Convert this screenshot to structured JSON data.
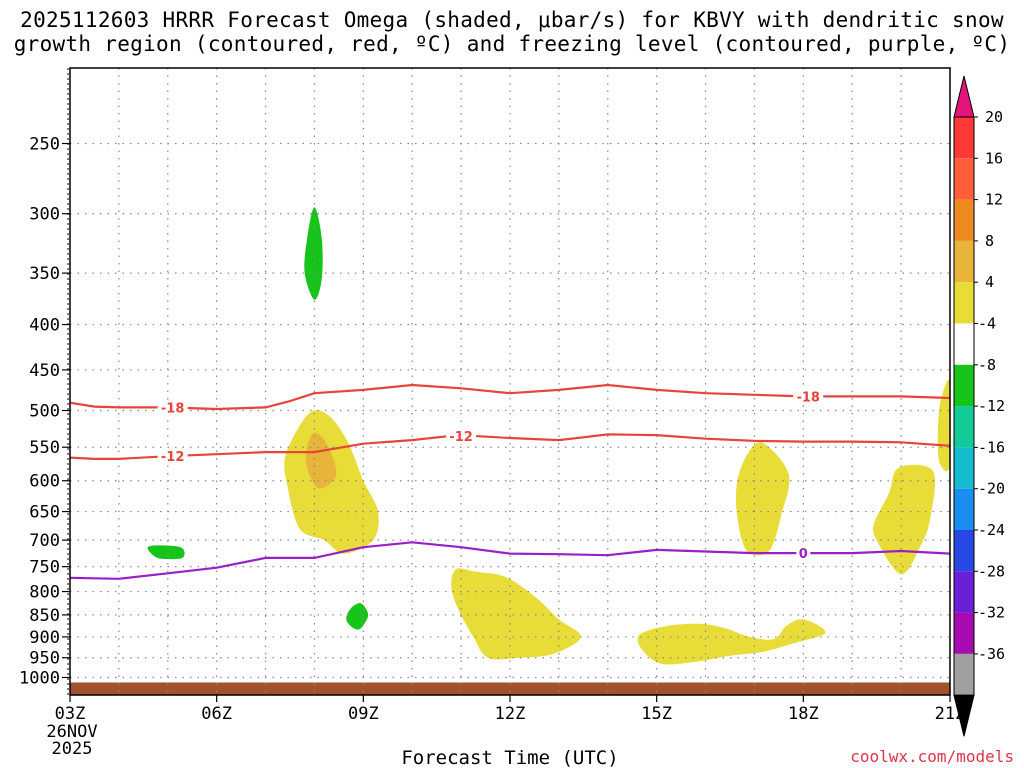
{
  "title": {
    "line1": "2025112603 HRRR Forecast Omega (shaded, μbar/s) for KBVY with dendritic snow",
    "line2": "growth region (contoured, red, ºC) and freezing level (contoured, purple, ºC)"
  },
  "credit": "coolwx.com/models",
  "colors": {
    "dendritic": "#e8443a",
    "freezing": "#9a1fc9",
    "terrain": "#a0522d",
    "grid": "#888888"
  },
  "chart_data": {
    "type": "heatmap",
    "xlabel": "Forecast Time (UTC)",
    "ylabel": "",
    "x_ticks": [
      "03Z",
      "06Z",
      "09Z",
      "12Z",
      "15Z",
      "18Z",
      "21Z"
    ],
    "x_first_sublabels": [
      "26NOV",
      "2025"
    ],
    "xlim_hours": [
      3,
      21
    ],
    "y_ticks": [
      250,
      300,
      350,
      400,
      450,
      500,
      550,
      600,
      650,
      700,
      750,
      800,
      850,
      900,
      950,
      1000
    ],
    "ylim_hPa": [
      1030,
      200
    ],
    "y_scale": "log",
    "colorbar": {
      "units": "μbar/s",
      "labels": [
        "20",
        "16",
        "12",
        "8",
        "4",
        "-4",
        "-8",
        "-12",
        "-16",
        "-20",
        "-24",
        "-28",
        "-32",
        "-36"
      ],
      "levels": [
        20,
        16,
        12,
        8,
        4,
        -4,
        -8,
        -12,
        -16,
        -20,
        -24,
        -28,
        -32,
        -36
      ],
      "colors": [
        "#ff3838",
        "#ff5e3a",
        "#ee8a20",
        "#e8b43a",
        "#e8dc38",
        "#ffffff",
        "#16c41a",
        "#12ca96",
        "#15bcd0",
        "#1a8ef0",
        "#2848e6",
        "#6a20d6",
        "#a80ab2",
        "#a0a0a0"
      ],
      "top_triangle_color": "#e4147a",
      "bottom_triangle_color": "#000000"
    },
    "shaded_regions": [
      {
        "level": -4,
        "points": [
          [
            4.15,
            780
          ],
          [
            3.85,
            745
          ],
          [
            3.55,
            700
          ],
          [
            3.55,
            650
          ],
          [
            3.8,
            620
          ],
          [
            4.2,
            645
          ],
          [
            4.7,
            665
          ],
          [
            5.3,
            665
          ],
          [
            5.9,
            660
          ],
          [
            5.95,
            700
          ],
          [
            6.1,
            760
          ],
          [
            6.6,
            815
          ],
          [
            6.45,
            860
          ],
          [
            5.9,
            880
          ],
          [
            5.2,
            830
          ],
          [
            4.6,
            790
          ]
        ]
      },
      {
        "level": -4,
        "points": [
          [
            4.0,
            985
          ],
          [
            3.7,
            960
          ],
          [
            3.7,
            880
          ],
          [
            3.95,
            845
          ],
          [
            4.35,
            865
          ],
          [
            4.9,
            885
          ],
          [
            5.5,
            890
          ],
          [
            5.45,
            925
          ],
          [
            5.0,
            945
          ],
          [
            4.4,
            960
          ]
        ]
      },
      {
        "level": -4,
        "points": [
          [
            4.92,
            380
          ],
          [
            4.75,
            355
          ],
          [
            4.9,
            335
          ],
          [
            5.05,
            355
          ]
        ]
      },
      {
        "level": -4,
        "points": [
          [
            6.7,
            575
          ],
          [
            6.65,
            530
          ],
          [
            6.95,
            500
          ],
          [
            7.05,
            540
          ],
          [
            7.0,
            575
          ]
        ]
      },
      {
        "level": -4,
        "points": [
          [
            7.95,
            425
          ],
          [
            7.6,
            410
          ],
          [
            7.5,
            350
          ],
          [
            7.55,
            290
          ],
          [
            7.8,
            258
          ],
          [
            8.1,
            265
          ],
          [
            8.3,
            310
          ],
          [
            8.3,
            380
          ],
          [
            8.2,
            415
          ]
        ]
      },
      {
        "level": -4,
        "points": [
          [
            11.9,
            450
          ],
          [
            11.3,
            405
          ],
          [
            10.85,
            360
          ],
          [
            10.9,
            340
          ],
          [
            11.2,
            335
          ],
          [
            11.6,
            300
          ],
          [
            12.1,
            290
          ],
          [
            12.3,
            340
          ],
          [
            12.45,
            380
          ],
          [
            12.4,
            425
          ]
        ]
      },
      {
        "level": -4,
        "points": [
          [
            17.8,
            330
          ],
          [
            17.6,
            300
          ],
          [
            17.75,
            280
          ],
          [
            18.0,
            265
          ],
          [
            18.35,
            290
          ],
          [
            18.2,
            315
          ]
        ]
      },
      {
        "level": -4,
        "points": [
          [
            7.55,
            710
          ],
          [
            7.8,
            695
          ],
          [
            8.1,
            710
          ],
          [
            7.8,
            725
          ]
        ]
      },
      {
        "level": -4,
        "points": [
          [
            7.6,
            990
          ],
          [
            7.3,
            970
          ],
          [
            7.35,
            930
          ],
          [
            7.8,
            900
          ],
          [
            8.2,
            855
          ],
          [
            8.6,
            820
          ],
          [
            9.0,
            800
          ],
          [
            9.4,
            815
          ],
          [
            9.3,
            875
          ],
          [
            9.0,
            920
          ],
          [
            8.6,
            950
          ],
          [
            8.2,
            985
          ]
        ]
      },
      {
        "level": -4,
        "points": [
          [
            19.9,
            940
          ],
          [
            20.05,
            925
          ],
          [
            20.2,
            940
          ],
          [
            20.05,
            955
          ]
        ]
      },
      {
        "level": 4,
        "points": [
          [
            8.6,
            725
          ],
          [
            8.2,
            700
          ],
          [
            7.7,
            680
          ],
          [
            7.45,
            610
          ],
          [
            7.4,
            565
          ],
          [
            7.7,
            520
          ],
          [
            8.0,
            500
          ],
          [
            8.35,
            510
          ],
          [
            8.7,
            545
          ],
          [
            9.0,
            600
          ],
          [
            9.3,
            650
          ],
          [
            9.2,
            700
          ]
        ]
      },
      {
        "level": 4,
        "points": [
          [
            11.55,
            950
          ],
          [
            11.25,
            900
          ],
          [
            10.95,
            840
          ],
          [
            10.8,
            790
          ],
          [
            10.9,
            755
          ],
          [
            11.3,
            760
          ],
          [
            11.9,
            770
          ],
          [
            12.5,
            810
          ],
          [
            13.0,
            860
          ],
          [
            13.45,
            900
          ],
          [
            12.9,
            940
          ],
          [
            12.2,
            950
          ]
        ]
      },
      {
        "level": 4,
        "points": [
          [
            15.1,
            965
          ],
          [
            14.7,
            930
          ],
          [
            14.65,
            895
          ],
          [
            15.2,
            875
          ],
          [
            15.9,
            870
          ],
          [
            16.4,
            880
          ],
          [
            16.9,
            900
          ],
          [
            17.4,
            905
          ],
          [
            17.65,
            875
          ],
          [
            18.0,
            860
          ],
          [
            18.45,
            890
          ],
          [
            17.8,
            915
          ],
          [
            17.2,
            935
          ],
          [
            16.5,
            945
          ],
          [
            15.8,
            960
          ]
        ]
      },
      {
        "level": 4,
        "points": [
          [
            16.85,
            720
          ],
          [
            16.65,
            660
          ],
          [
            16.65,
            600
          ],
          [
            16.9,
            555
          ],
          [
            17.2,
            545
          ],
          [
            17.7,
            590
          ],
          [
            17.55,
            655
          ],
          [
            17.3,
            720
          ]
        ]
      },
      {
        "level": 4,
        "points": [
          [
            20.0,
            765
          ],
          [
            19.5,
            700
          ],
          [
            19.45,
            670
          ],
          [
            19.75,
            620
          ],
          [
            19.95,
            580
          ],
          [
            20.65,
            585
          ],
          [
            20.6,
            660
          ],
          [
            20.4,
            710
          ]
        ]
      },
      {
        "level": 4,
        "points": [
          [
            20.8,
            575
          ],
          [
            20.75,
            540
          ],
          [
            20.8,
            490
          ],
          [
            21.0,
            465
          ],
          [
            21.0,
            575
          ]
        ]
      },
      {
        "level": 8,
        "points": [
          [
            8.1,
            612
          ],
          [
            7.85,
            580
          ],
          [
            7.85,
            550
          ],
          [
            8.0,
            530
          ],
          [
            8.25,
            545
          ],
          [
            8.45,
            590
          ]
        ]
      },
      {
        "level": -8,
        "points": [
          [
            4.6,
            712
          ],
          [
            5.0,
            710
          ],
          [
            5.3,
            715
          ],
          [
            5.3,
            733
          ],
          [
            4.9,
            735
          ],
          [
            4.7,
            728
          ]
        ]
      },
      {
        "level": -8,
        "points": [
          [
            8.0,
            375
          ],
          [
            7.8,
            350
          ],
          [
            7.85,
            320
          ],
          [
            8.0,
            295
          ],
          [
            8.15,
            320
          ],
          [
            8.15,
            355
          ]
        ]
      },
      {
        "level": -8,
        "points": [
          [
            8.8,
            880
          ],
          [
            8.65,
            860
          ],
          [
            8.75,
            835
          ],
          [
            8.95,
            825
          ],
          [
            9.1,
            850
          ],
          [
            8.95,
            880
          ]
        ]
      }
    ],
    "series": [
      {
        "name": "-18",
        "label_at_hours": [
          5.1,
          18.1
        ],
        "values": [
          [
            3,
            490
          ],
          [
            3.5,
            495
          ],
          [
            4,
            496
          ],
          [
            5,
            496
          ],
          [
            6,
            498
          ],
          [
            7,
            496
          ],
          [
            7.5,
            488
          ],
          [
            8,
            478
          ],
          [
            9,
            474
          ],
          [
            10,
            468
          ],
          [
            11,
            472
          ],
          [
            12,
            478
          ],
          [
            13,
            474
          ],
          [
            14,
            468
          ],
          [
            15,
            474
          ],
          [
            16,
            478
          ],
          [
            17,
            480
          ],
          [
            18,
            482
          ],
          [
            19,
            482
          ],
          [
            20,
            482
          ],
          [
            21,
            484
          ]
        ]
      },
      {
        "name": "-12",
        "label_at_hours": [
          5.1,
          11.0
        ],
        "values": [
          [
            3,
            565
          ],
          [
            3.5,
            567
          ],
          [
            4,
            567
          ],
          [
            5,
            563
          ],
          [
            6,
            560
          ],
          [
            7,
            557
          ],
          [
            8,
            557
          ],
          [
            9,
            545
          ],
          [
            10,
            540
          ],
          [
            10.8,
            534
          ],
          [
            11.2,
            534
          ],
          [
            12,
            537
          ],
          [
            13,
            540
          ],
          [
            13.5,
            536
          ],
          [
            14,
            532
          ],
          [
            15,
            533
          ],
          [
            16,
            538
          ],
          [
            17,
            541
          ],
          [
            18,
            542
          ],
          [
            19,
            542
          ],
          [
            20,
            543
          ],
          [
            21,
            548
          ]
        ]
      },
      {
        "name": "0",
        "label_at_hours": [
          18.0
        ],
        "values": [
          [
            3,
            772
          ],
          [
            4,
            774
          ],
          [
            5,
            763
          ],
          [
            6,
            752
          ],
          [
            7,
            733
          ],
          [
            7.5,
            733
          ],
          [
            8,
            733
          ],
          [
            9,
            713
          ],
          [
            10,
            704
          ],
          [
            11,
            713
          ],
          [
            12,
            725
          ],
          [
            13,
            726
          ],
          [
            14,
            728
          ],
          [
            15,
            718
          ],
          [
            16,
            721
          ],
          [
            17,
            724
          ],
          [
            18,
            724
          ],
          [
            19,
            724
          ],
          [
            20,
            720
          ],
          [
            21,
            725
          ]
        ]
      }
    ],
    "terrain_top_hPa": 1013,
    "grid": true
  }
}
